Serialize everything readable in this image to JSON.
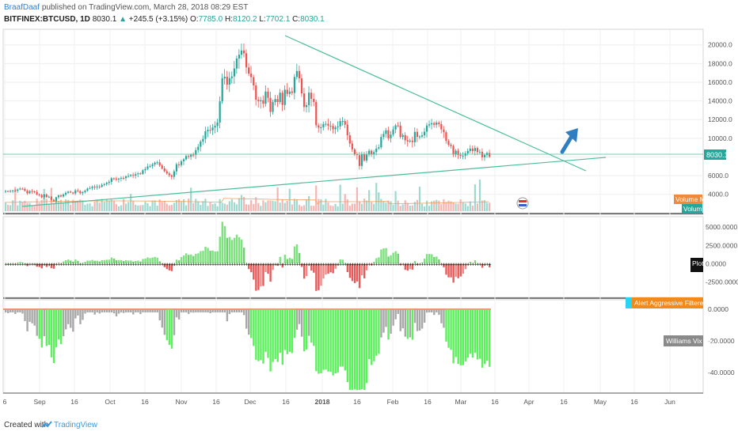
{
  "header": {
    "author": "BraafDaaf",
    "published": "published on TradingView.com, March 28, 2018 08:29 EST",
    "symbol": "BITFINEX:BTCUSD, 1D",
    "last": "8030.1",
    "change": "+245.5 (+3.15%)",
    "o_label": "O:",
    "o": "7785.0",
    "h_label": "H:",
    "h": "8120.2",
    "l_label": "L:",
    "l": "7702.1",
    "c_label": "C:",
    "c": "8030.1"
  },
  "footer": {
    "created_with": "Created with",
    "brand": "TradingView"
  },
  "colors": {
    "up": "#26a69a",
    "down": "#ef5350",
    "trendline": "#4dbd9c",
    "osc_up": "#7ee07e",
    "osc_down": "#e65a5a",
    "vix_gray": "#a8a8a8",
    "vix_green": "#5cf05c",
    "arrow": "#2f7ec2"
  },
  "chart_data": [
    {
      "type": "candlestick",
      "panel": "price",
      "y_axis_ticks": [
        "20000.0",
        "18000.0",
        "16000.0",
        "14000.0",
        "12000.0",
        "10000.0",
        "8030.1",
        "6000.0",
        "4000.0"
      ],
      "ylim": [
        2200,
        21500
      ],
      "x_ticks": [
        "6",
        "Sep",
        "16",
        "Oct",
        "16",
        "Nov",
        "16",
        "Dec",
        "16",
        "2018",
        "16",
        "Feb",
        "16",
        "Mar",
        "16",
        "Apr",
        "16",
        "May",
        "16",
        "Jun"
      ],
      "close": [
        4350,
        4330,
        4370,
        4420,
        4380,
        4520,
        4610,
        4580,
        4380,
        4110,
        4360,
        4320,
        4260,
        3990,
        3910,
        3680,
        3980,
        3720,
        3750,
        3420,
        3270,
        3690,
        3890,
        3770,
        3980,
        4160,
        4300,
        4200,
        4100,
        4420,
        4340,
        4120,
        4230,
        4390,
        4620,
        4680,
        4820,
        4760,
        4840,
        4810,
        5010,
        5090,
        5230,
        5340,
        5720,
        5690,
        5590,
        5680,
        5760,
        5740,
        5930,
        5980,
        6080,
        6010,
        6160,
        6250,
        6190,
        6580,
        6720,
        6980,
        7010,
        7200,
        7390,
        7430,
        7090,
        6780,
        6470,
        6240,
        6040,
        5880,
        6460,
        7220,
        7130,
        7540,
        7750,
        8100,
        8030,
        8240,
        8230,
        8740,
        9100,
        9650,
        9930,
        10750,
        10910,
        10860,
        11160,
        11340,
        11690,
        13950,
        16420,
        16590,
        15740,
        16440,
        16620,
        17470,
        18540,
        18940,
        19400,
        19100,
        17590,
        16920,
        16540,
        15660,
        14120,
        13960,
        14080,
        13700,
        15000,
        14330,
        12820,
        13880,
        14200,
        13880,
        14880,
        13560,
        15200,
        14750,
        15010,
        14860,
        16560,
        17200,
        16410,
        14800,
        13350,
        13540,
        14880,
        14220,
        13890,
        11390,
        11140,
        11180,
        11520,
        11550,
        11350,
        11320,
        10970,
        11170,
        11270,
        11840,
        11850,
        11460,
        10320,
        9440,
        8810,
        8290,
        8200,
        7040,
        8320,
        7620,
        8250,
        8670,
        8270,
        8520,
        8900,
        9030,
        10140,
        10470,
        10860,
        10000,
        10400,
        10950,
        11380,
        11360,
        10150,
        10340,
        9790,
        9650,
        9750,
        9590,
        10690,
        10160,
        10190,
        10320,
        10710,
        11370,
        11490,
        11620,
        11450,
        11680,
        11520,
        10950,
        10650,
        9720,
        9310,
        9170,
        8260,
        8680,
        8220,
        8130,
        8140,
        8390,
        8640,
        8900,
        8640,
        8960,
        8520,
        8560,
        7970,
        8210,
        8430,
        8030
      ]
    },
    {
      "type": "bar",
      "panel": "volume",
      "name": "Volume",
      "legend": [
        "Volume MA",
        "Volume"
      ]
    },
    {
      "type": "bar",
      "panel": "oscillator",
      "legend": "Plot",
      "y_axis_ticks": [
        "5000.0000",
        "2500.0000",
        "0.0000",
        "-2500.0000"
      ],
      "ylim": [
        -4200,
        6000
      ]
    },
    {
      "type": "bar",
      "panel": "williams-vix-fix",
      "legend": [
        "Alert Aggressive Filtered Entry",
        "Williams Vix Fix"
      ],
      "y_axis_ticks": [
        "0.0000",
        "-20.0000",
        "-40.0000"
      ],
      "ylim": [
        -52,
        4
      ]
    }
  ]
}
